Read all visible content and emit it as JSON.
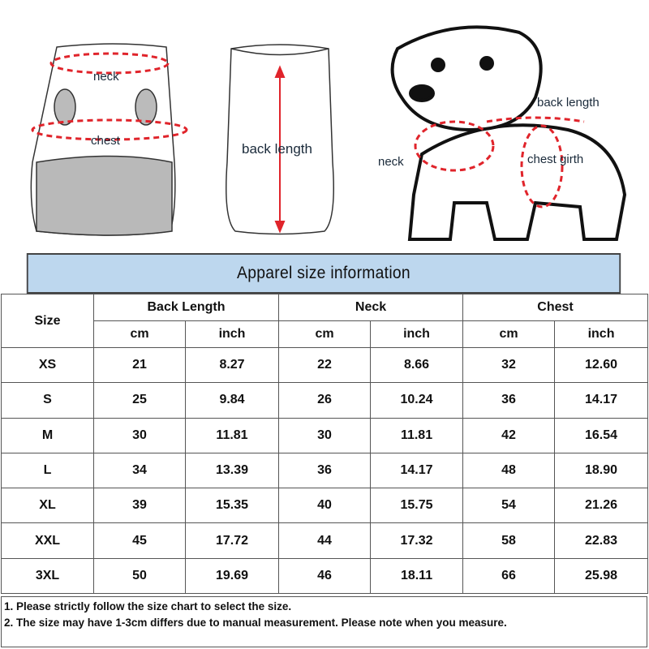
{
  "illustrations": {
    "front_labels": {
      "neck": "neck",
      "chest": "chest"
    },
    "back_label": "back length",
    "dog_labels": {
      "back_length": "back length",
      "neck": "neck",
      "chest_girth": "chest girth"
    },
    "accent_color": "#e0242b"
  },
  "title": "Apparel size information",
  "table": {
    "size_header": "Size",
    "groups": [
      "Back Length",
      "Neck",
      "Chest"
    ],
    "units": [
      "cm",
      "inch",
      "cm",
      "inch",
      "cm",
      "inch"
    ],
    "rows": [
      {
        "size": "XS",
        "values": [
          "21",
          "8.27",
          "22",
          "8.66",
          "32",
          "12.60"
        ]
      },
      {
        "size": "S",
        "values": [
          "25",
          "9.84",
          "26",
          "10.24",
          "36",
          "14.17"
        ]
      },
      {
        "size": "M",
        "values": [
          "30",
          "11.81",
          "30",
          "11.81",
          "42",
          "16.54"
        ]
      },
      {
        "size": "L",
        "values": [
          "34",
          "13.39",
          "36",
          "14.17",
          "48",
          "18.90"
        ]
      },
      {
        "size": "XL",
        "values": [
          "39",
          "15.35",
          "40",
          "15.75",
          "54",
          "21.26"
        ]
      },
      {
        "size": "XXL",
        "values": [
          "45",
          "17.72",
          "44",
          "17.32",
          "58",
          "22.83"
        ]
      },
      {
        "size": "3XL",
        "values": [
          "50",
          "19.69",
          "46",
          "18.11",
          "66",
          "25.98"
        ]
      }
    ]
  },
  "notes": [
    "1. Please strictly follow the size chart  to select the size.",
    "2. The size may have 1-3cm differs due to manual measurement. Please note when you measure."
  ]
}
